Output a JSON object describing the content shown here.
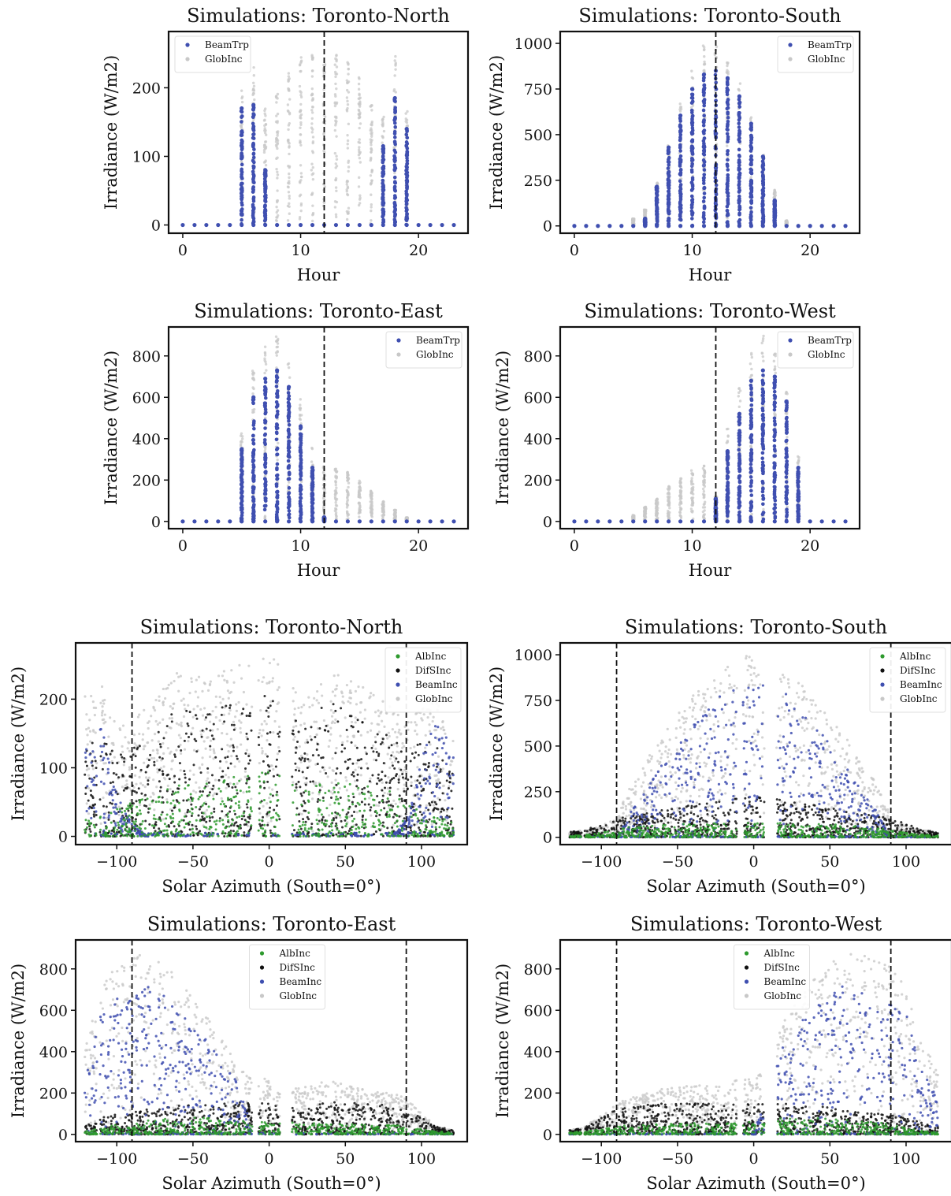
{
  "colors": {
    "BeamTrp": "#3f4fb0",
    "BeamInc": "#3f4fb0",
    "GlobInc": "#c8c8c8",
    "DifSInc": "#111111",
    "AlbInc": "#2e9a2e"
  },
  "chart_data": [
    {
      "type": "scatter",
      "title": "Simulations: Toronto-North",
      "xlabel": "Hour",
      "ylabel": "Irradiance (W/m2)",
      "xlim": [
        -1.2,
        24.2
      ],
      "ylim": [
        -12,
        282
      ],
      "xticks": [
        0,
        10,
        20
      ],
      "yticks": [
        0,
        100,
        200
      ],
      "vline": [
        12
      ],
      "legend": [
        "BeamTrp",
        "GlobInc"
      ],
      "legend_loc": "upper-left",
      "x": [
        0,
        1,
        2,
        3,
        4,
        5,
        6,
        7,
        8,
        9,
        10,
        11,
        12,
        13,
        14,
        15,
        16,
        17,
        18,
        19,
        20,
        21,
        22,
        23
      ],
      "series": [
        {
          "name": "GlobInc",
          "max": [
            0,
            0,
            0,
            0,
            0,
            200,
            235,
            175,
            205,
            225,
            245,
            262,
            240,
            258,
            240,
            215,
            175,
            160,
            250,
            168,
            0,
            0,
            0,
            0
          ]
        },
        {
          "name": "BeamTrp",
          "max": [
            0,
            0,
            0,
            0,
            0,
            170,
            175,
            80,
            0,
            0,
            0,
            0,
            0,
            0,
            0,
            0,
            0,
            115,
            185,
            140,
            0,
            0,
            0,
            0
          ]
        }
      ]
    },
    {
      "type": "scatter",
      "title": "Simulations: Toronto-South",
      "xlabel": "Hour",
      "ylabel": "Irradiance (W/m2)",
      "xlim": [
        -1.2,
        24.2
      ],
      "ylim": [
        -40,
        1065
      ],
      "xticks": [
        0,
        10,
        20
      ],
      "yticks": [
        0,
        250,
        500,
        750,
        1000
      ],
      "vline": [
        12
      ],
      "legend": [
        "BeamTrp",
        "GlobInc"
      ],
      "legend_loc": "upper-right",
      "x": [
        0,
        1,
        2,
        3,
        4,
        5,
        6,
        7,
        8,
        9,
        10,
        11,
        12,
        13,
        14,
        15,
        16,
        17,
        18,
        19,
        20,
        21,
        22,
        23
      ],
      "series": [
        {
          "name": "GlobInc",
          "max": [
            0,
            0,
            0,
            0,
            0,
            40,
            90,
            240,
            440,
            680,
            850,
            990,
            1000,
            900,
            780,
            610,
            400,
            200,
            30,
            0,
            0,
            0,
            0,
            0
          ]
        },
        {
          "name": "BeamTrp",
          "max": [
            0,
            0,
            0,
            0,
            0,
            0,
            40,
            215,
            430,
            605,
            750,
            830,
            850,
            810,
            710,
            560,
            380,
            140,
            0,
            0,
            0,
            0,
            0,
            0
          ]
        }
      ]
    },
    {
      "type": "scatter",
      "title": "Simulations: Toronto-East",
      "xlabel": "Hour",
      "ylabel": "Irradiance (W/m2)",
      "xlim": [
        -1.2,
        24.2
      ],
      "ylim": [
        -35,
        940
      ],
      "xticks": [
        0,
        10,
        20
      ],
      "yticks": [
        0,
        200,
        400,
        600,
        800
      ],
      "vline": [
        12
      ],
      "legend": [
        "BeamTrp",
        "GlobInc"
      ],
      "legend_loc": "upper-right",
      "x": [
        0,
        1,
        2,
        3,
        4,
        5,
        6,
        7,
        8,
        9,
        10,
        11,
        12,
        13,
        14,
        15,
        16,
        17,
        18,
        19,
        20,
        21,
        22,
        23
      ],
      "series": [
        {
          "name": "GlobInc",
          "max": [
            0,
            0,
            0,
            0,
            0,
            450,
            730,
            850,
            900,
            800,
            600,
            380,
            270,
            260,
            240,
            200,
            150,
            100,
            55,
            20,
            0,
            0,
            0,
            0
          ]
        },
        {
          "name": "BeamTrp",
          "max": [
            0,
            0,
            0,
            0,
            0,
            350,
            600,
            690,
            730,
            650,
            460,
            260,
            20,
            0,
            0,
            0,
            0,
            0,
            0,
            0,
            0,
            0,
            0,
            0
          ]
        }
      ]
    },
    {
      "type": "scatter",
      "title": "Simulations: Toronto-West",
      "xlabel": "Hour",
      "ylabel": "Irradiance (W/m2)",
      "xlim": [
        -1.2,
        24.2
      ],
      "ylim": [
        -35,
        940
      ],
      "xticks": [
        0,
        10,
        20
      ],
      "yticks": [
        0,
        200,
        400,
        600,
        800
      ],
      "vline": [
        12
      ],
      "legend": [
        "BeamTrp",
        "GlobInc"
      ],
      "legend_loc": "upper-right",
      "x": [
        0,
        1,
        2,
        3,
        4,
        5,
        6,
        7,
        8,
        9,
        10,
        11,
        12,
        13,
        14,
        15,
        16,
        17,
        18,
        19,
        20,
        21,
        22,
        23
      ],
      "series": [
        {
          "name": "GlobInc",
          "max": [
            0,
            0,
            0,
            0,
            0,
            30,
            70,
            110,
            170,
            210,
            250,
            270,
            120,
            450,
            660,
            820,
            900,
            820,
            660,
            320,
            0,
            0,
            0,
            0
          ]
        },
        {
          "name": "BeamTrp",
          "max": [
            0,
            0,
            0,
            0,
            0,
            0,
            0,
            0,
            0,
            0,
            0,
            0,
            110,
            340,
            520,
            680,
            730,
            700,
            580,
            260,
            0,
            0,
            0,
            0
          ]
        }
      ]
    },
    {
      "type": "scatter",
      "title": "Simulations: Toronto-North",
      "xlabel": "Solar Azimuth (South=0°)",
      "ylabel": "Irradiance (W/m2)",
      "xlim": [
        -127,
        130
      ],
      "ylim": [
        -12,
        282
      ],
      "xticks": [
        -100,
        -50,
        0,
        50,
        100
      ],
      "yticks": [
        0,
        100,
        200
      ],
      "vline": [
        -90,
        90
      ],
      "legend": [
        "AlbInc",
        "DifSInc",
        "BeamInc",
        "GlobInc"
      ],
      "legend_loc": "upper-right",
      "envelope_x": [
        -120,
        -110,
        -100,
        -90,
        -80,
        -60,
        -40,
        -20,
        -10,
        0,
        10,
        20,
        40,
        60,
        80,
        90,
        100,
        110,
        120
      ],
      "series": [
        {
          "name": "GlobInc",
          "values": [
            205,
            230,
            160,
            170,
            190,
            240,
            230,
            260,
            250,
            270,
            250,
            200,
            240,
            225,
            200,
            170,
            190,
            200,
            140
          ]
        },
        {
          "name": "DifSInc",
          "values": [
            130,
            150,
            120,
            130,
            140,
            190,
            180,
            200,
            200,
            210,
            200,
            160,
            200,
            170,
            150,
            120,
            140,
            150,
            100
          ]
        },
        {
          "name": "BeamInc",
          "values": [
            150,
            160,
            60,
            20,
            0,
            0,
            0,
            0,
            0,
            0,
            0,
            0,
            0,
            0,
            0,
            25,
            110,
            190,
            120
          ]
        },
        {
          "name": "AlbInc",
          "values": [
            30,
            30,
            40,
            50,
            60,
            75,
            80,
            90,
            90,
            95,
            90,
            70,
            80,
            75,
            70,
            55,
            40,
            30,
            20
          ]
        }
      ]
    },
    {
      "type": "scatter",
      "title": "Simulations: Toronto-South",
      "xlabel": "Solar Azimuth (South=0°)",
      "ylabel": "Irradiance (W/m2)",
      "xlim": [
        -127,
        130
      ],
      "ylim": [
        -40,
        1065
      ],
      "xticks": [
        -100,
        -50,
        0,
        50,
        100
      ],
      "yticks": [
        0,
        250,
        500,
        750,
        1000
      ],
      "vline": [
        -90,
        90
      ],
      "legend": [
        "AlbInc",
        "DifSInc",
        "BeamInc",
        "GlobInc"
      ],
      "legend_loc": "upper-right",
      "envelope_x": [
        -120,
        -110,
        -100,
        -90,
        -80,
        -60,
        -40,
        -20,
        -10,
        0,
        10,
        20,
        40,
        60,
        80,
        90,
        100,
        110,
        120
      ],
      "series": [
        {
          "name": "GlobInc",
          "values": [
            30,
            40,
            60,
            120,
            300,
            560,
            780,
            930,
            990,
            1010,
            990,
            930,
            780,
            560,
            300,
            120,
            60,
            40,
            30
          ]
        },
        {
          "name": "DifSInc",
          "values": [
            30,
            40,
            80,
            100,
            120,
            150,
            180,
            200,
            220,
            230,
            220,
            200,
            180,
            150,
            120,
            100,
            80,
            40,
            30
          ]
        },
        {
          "name": "BeamInc",
          "values": [
            0,
            0,
            0,
            0,
            150,
            400,
            620,
            800,
            830,
            840,
            830,
            800,
            620,
            400,
            150,
            0,
            0,
            0,
            0
          ]
        },
        {
          "name": "AlbInc",
          "values": [
            10,
            15,
            25,
            40,
            60,
            70,
            75,
            80,
            80,
            80,
            80,
            80,
            75,
            70,
            60,
            40,
            25,
            15,
            10
          ]
        }
      ]
    },
    {
      "type": "scatter",
      "title": "Simulations: Toronto-East",
      "xlabel": "Solar Azimuth (South=0°)",
      "ylabel": "Irradiance (W/m2)",
      "xlim": [
        -127,
        130
      ],
      "ylim": [
        -35,
        940
      ],
      "xticks": [
        -100,
        -50,
        0,
        50,
        100
      ],
      "yticks": [
        0,
        200,
        400,
        600,
        800
      ],
      "vline": [
        -90,
        90
      ],
      "legend": [
        "AlbInc",
        "DifSInc",
        "BeamInc",
        "GlobInc"
      ],
      "legend_loc": "upper-center",
      "envelope_x": [
        -120,
        -110,
        -100,
        -90,
        -80,
        -60,
        -40,
        -20,
        -10,
        0,
        10,
        20,
        40,
        60,
        80,
        90,
        100,
        110,
        120
      ],
      "series": [
        {
          "name": "GlobInc",
          "values": [
            440,
            720,
            830,
            850,
            900,
            760,
            560,
            330,
            270,
            270,
            200,
            230,
            260,
            220,
            200,
            180,
            100,
            40,
            20
          ]
        },
        {
          "name": "DifSInc",
          "values": [
            60,
            80,
            100,
            110,
            120,
            140,
            150,
            160,
            150,
            150,
            140,
            130,
            160,
            150,
            140,
            120,
            80,
            40,
            20
          ]
        },
        {
          "name": "BeamInc",
          "values": [
            330,
            600,
            660,
            650,
            730,
            620,
            460,
            240,
            0,
            0,
            0,
            0,
            0,
            0,
            0,
            0,
            0,
            0,
            0
          ]
        },
        {
          "name": "AlbInc",
          "values": [
            20,
            30,
            50,
            60,
            70,
            80,
            80,
            70,
            60,
            60,
            60,
            55,
            55,
            50,
            45,
            40,
            25,
            15,
            10
          ]
        }
      ]
    },
    {
      "type": "scatter",
      "title": "Simulations: Toronto-West",
      "xlabel": "Solar Azimuth (South=0°)",
      "ylabel": "Irradiance (W/m2)",
      "xlim": [
        -127,
        130
      ],
      "ylim": [
        -35,
        940
      ],
      "xticks": [
        -100,
        -50,
        0,
        50,
        100
      ],
      "yticks": [
        0,
        200,
        400,
        600,
        800
      ],
      "vline": [
        -90,
        90
      ],
      "legend": [
        "AlbInc",
        "DifSInc",
        "BeamInc",
        "GlobInc"
      ],
      "legend_loc": "upper-center",
      "envelope_x": [
        -120,
        -110,
        -100,
        -90,
        -80,
        -60,
        -40,
        -20,
        -10,
        0,
        10,
        20,
        40,
        60,
        80,
        90,
        100,
        110,
        120
      ],
      "series": [
        {
          "name": "GlobInc",
          "values": [
            20,
            40,
            100,
            150,
            180,
            220,
            240,
            230,
            270,
            270,
            330,
            560,
            760,
            900,
            850,
            830,
            720,
            440,
            330
          ]
        },
        {
          "name": "DifSInc",
          "values": [
            20,
            40,
            80,
            120,
            140,
            150,
            160,
            150,
            150,
            150,
            160,
            150,
            140,
            120,
            110,
            100,
            80,
            60,
            40
          ]
        },
        {
          "name": "BeamInc",
          "values": [
            0,
            0,
            0,
            0,
            0,
            0,
            0,
            0,
            0,
            0,
            240,
            460,
            620,
            730,
            650,
            660,
            600,
            330,
            200
          ]
        },
        {
          "name": "AlbInc",
          "values": [
            10,
            15,
            25,
            40,
            45,
            50,
            55,
            55,
            60,
            60,
            70,
            80,
            80,
            70,
            60,
            50,
            30,
            20,
            10
          ]
        }
      ]
    }
  ]
}
